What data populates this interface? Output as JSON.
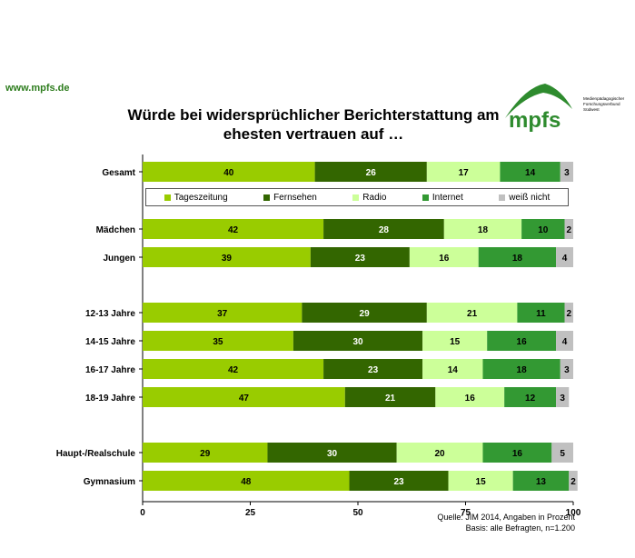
{
  "header": {
    "url": "www.mpfs.de",
    "title_line1": "Würde bei widersprüchlicher Berichterstattung am",
    "title_line2": "ehesten vertrauen auf …"
  },
  "logo": {
    "name": "mpfs",
    "tagline1": "Medienpädagogischer",
    "tagline2": "Forschungsverbund",
    "tagline3": "Südwest",
    "color": "#2e8b2e"
  },
  "source": {
    "line1": "Quelle: JIM 2014, Angaben in Prozent",
    "line2": "Basis: alle Befragten, n=1.200"
  },
  "chart_data": {
    "type": "bar",
    "orientation": "horizontal",
    "stacked": true,
    "xlim": [
      0,
      100
    ],
    "xticks": [
      0,
      25,
      50,
      75,
      100
    ],
    "grid": false,
    "legend_position": "below first bar",
    "categories": [
      "Gesamt",
      "Mädchen",
      "Jungen",
      "12-13 Jahre",
      "14-15 Jahre",
      "16-17 Jahre",
      "18-19 Jahre",
      "Haupt-/Realschule",
      "Gymnasium"
    ],
    "series": [
      {
        "name": "Tageszeitung",
        "color": "#99cc00",
        "values": [
          40,
          42,
          39,
          37,
          35,
          42,
          47,
          29,
          48
        ]
      },
      {
        "name": "Fernsehen",
        "color": "#336600",
        "values": [
          26,
          28,
          23,
          29,
          30,
          23,
          21,
          30,
          23
        ]
      },
      {
        "name": "Radio",
        "color": "#ccff99",
        "values": [
          17,
          18,
          16,
          21,
          15,
          14,
          16,
          20,
          15
        ]
      },
      {
        "name": "Internet",
        "color": "#339933",
        "values": [
          14,
          10,
          18,
          11,
          16,
          18,
          12,
          16,
          13
        ]
      },
      {
        "name": "weiß nicht",
        "color": "#c0c0c0",
        "values": [
          3,
          2,
          4,
          2,
          4,
          3,
          3,
          5,
          2
        ]
      }
    ]
  }
}
